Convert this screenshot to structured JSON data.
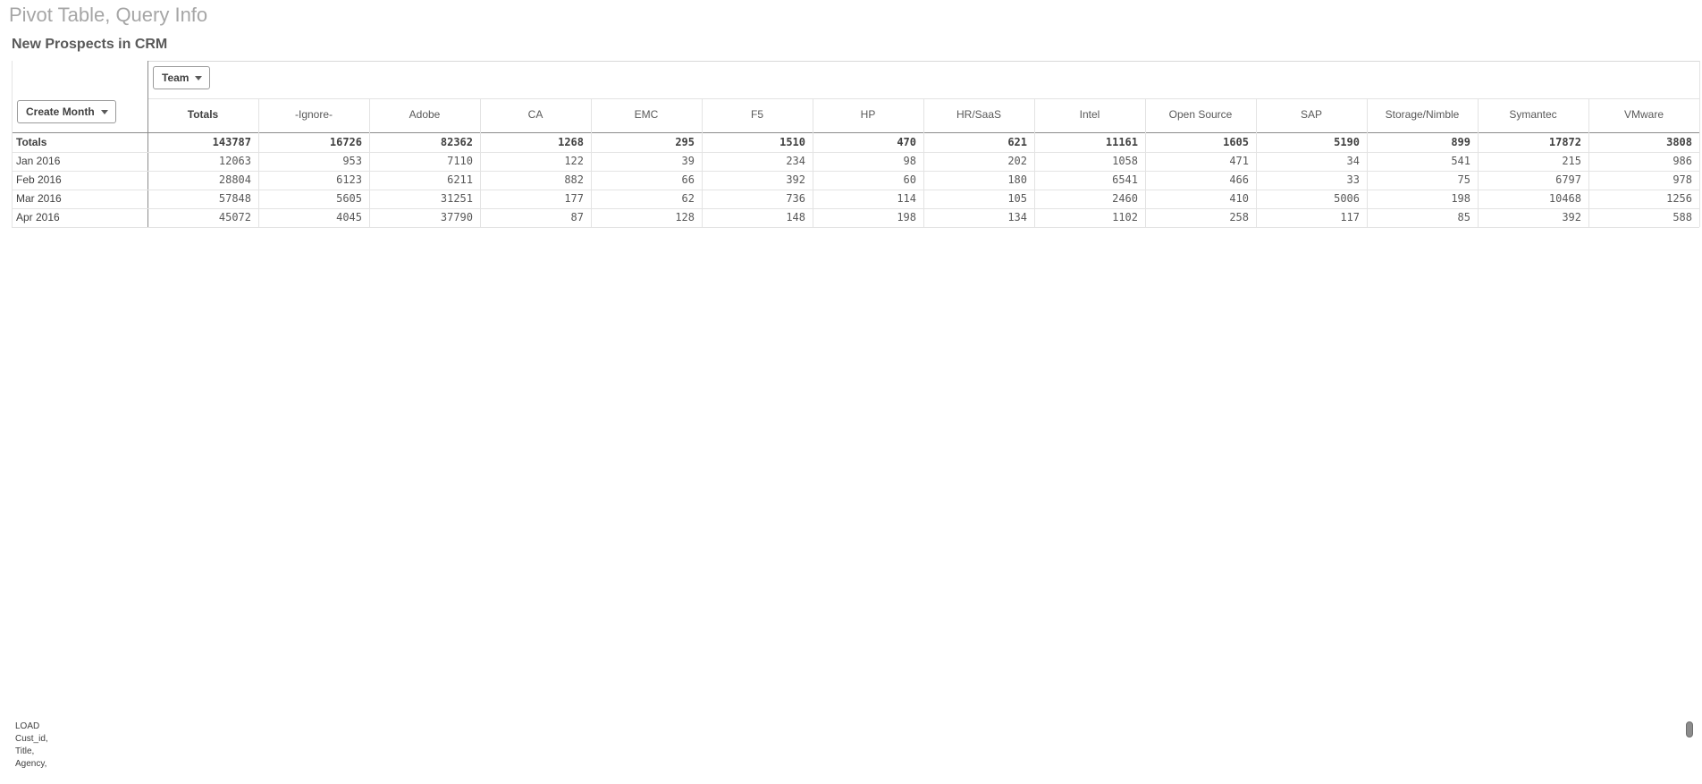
{
  "sheet": {
    "title": "Pivot Table, Query Info"
  },
  "pivot": {
    "title": "New Prospects in CRM",
    "column_dimension_label": "Team",
    "row_dimension_label": "Create Month",
    "columns": [
      "Totals",
      "-Ignore-",
      "Adobe",
      "CA",
      "EMC",
      "F5",
      "HP",
      "HR/SaaS",
      "Intel",
      "Open Source",
      "SAP",
      "Storage/Nimble",
      "Symantec",
      "VMware"
    ],
    "rows": [
      {
        "label": "Totals",
        "values": [
          "143787",
          "16726",
          "82362",
          "1268",
          "295",
          "1510",
          "470",
          "621",
          "11161",
          "1605",
          "5190",
          "899",
          "17872",
          "3808"
        ]
      },
      {
        "label": "Jan 2016",
        "values": [
          "12063",
          "953",
          "7110",
          "122",
          "39",
          "234",
          "98",
          "202",
          "1058",
          "471",
          "34",
          "541",
          "215",
          "986"
        ]
      },
      {
        "label": "Feb 2016",
        "values": [
          "28804",
          "6123",
          "6211",
          "882",
          "66",
          "392",
          "60",
          "180",
          "6541",
          "466",
          "33",
          "75",
          "6797",
          "978"
        ]
      },
      {
        "label": "Mar 2016",
        "values": [
          "57848",
          "5605",
          "31251",
          "177",
          "62",
          "736",
          "114",
          "105",
          "2460",
          "410",
          "5006",
          "198",
          "10468",
          "1256"
        ]
      },
      {
        "label": "Apr 2016",
        "values": [
          "45072",
          "4045",
          "37790",
          "87",
          "128",
          "148",
          "198",
          "134",
          "1102",
          "258",
          "117",
          "85",
          "392",
          "588"
        ]
      }
    ]
  },
  "script_preview": {
    "lines": [
      "LOAD",
      "Cust_id,",
      "Title,",
      "Agency,"
    ]
  }
}
